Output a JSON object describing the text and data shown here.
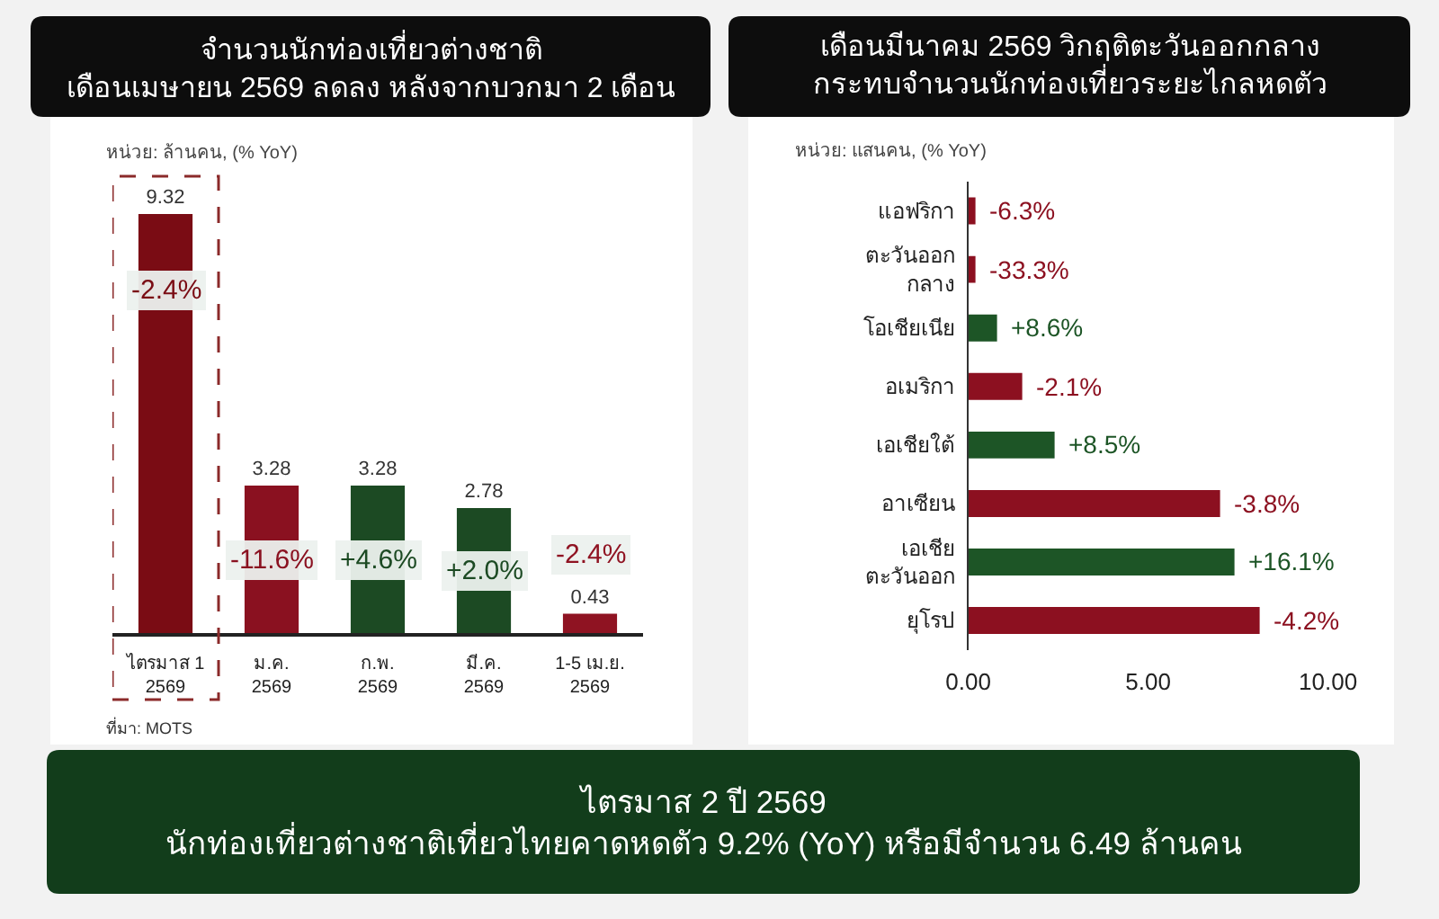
{
  "chart_data": [
    {
      "type": "bar",
      "title": "จำนวนนักท่องเที่ยวต่างชาติ\nเดือนเมษายน 2569 ลดลง หลังจากบวกมา 2 เดือน",
      "subtitle": "หน่วย: ล้านคน, (% YoY)",
      "categories": [
        "ไตรมาส 1\n2569",
        "ม.ค.\n2569",
        "ก.พ.\n2569",
        "มี.ค.\n2569",
        "1-5 เม.ย.\n2569"
      ],
      "values": [
        9.32,
        3.28,
        3.28,
        2.78,
        0.43
      ],
      "colors": [
        "#7a0c14",
        "#8a1120",
        "#1c4a23",
        "#1c4a23",
        "#8f1322"
      ],
      "data_labels": true,
      "tick_labels": "x",
      "annotations": [
        {
          "text": "-2.4%",
          "x": "ไตรมาส 1\n2569",
          "y": 9.32
        },
        {
          "text": "-11.6%",
          "x": "ม.ค.\n2569",
          "y": 3.28
        },
        {
          "text": "+4.6%",
          "x": "ก.พ.\n2569",
          "y": 3.28
        },
        {
          "text": "+2.0%",
          "x": "มี.ค.\n2569",
          "y": 2.78
        },
        {
          "text": "-2.4%",
          "x": "1-5 เม.ย.\n2569",
          "y": 0.43
        },
        "ที่มา: MOTS"
      ]
    },
    {
      "type": "bar",
      "orientation": "horizontal",
      "title": "เดือนมีนาคม 2569 วิกฤติตะวันออกกลาง\nกระทบจำนวนนักท่องเที่ยวระยะไกลหดตัว",
      "subtitle": "หน่วย: แสนคน, (% YoY)",
      "categories": [
        "แอฟริกา",
        "ตะวันออก\nกลาง",
        "โอเชียเนีย",
        "อเมริกา",
        "เอเชียใต้",
        "อาเซียน",
        "เอเชีย\nตะวันออก",
        "ยุโรป"
      ],
      "values": [
        0.2,
        0.2,
        0.8,
        1.5,
        2.4,
        7.0,
        7.4,
        8.1
      ],
      "colors": [
        "#8c1020",
        "#8c1020",
        "#1d5526",
        "#8c1020",
        "#1d5526",
        "#8c1020",
        "#1d5526",
        "#8c1020"
      ],
      "xlim": [
        0,
        10
      ],
      "xticks": [
        {
          "value": 0,
          "label": "0.00"
        },
        {
          "value": 5,
          "label": "5.00"
        },
        {
          "value": 10,
          "label": "10.00"
        }
      ],
      "annotations": [
        {
          "text": "-6.3%",
          "x": 0.2,
          "y": "แอฟริกา"
        },
        {
          "text": "-33.3%",
          "x": 0.2,
          "y": "ตะวันออก\nกลาง"
        },
        {
          "text": "+8.6%",
          "x": 0.8,
          "y": "โอเชียเนีย"
        },
        {
          "text": "-2.1%",
          "x": 1.5,
          "y": "อเมริกา"
        },
        {
          "text": "+8.5%",
          "x": 2.4,
          "y": "เอเชียใต้"
        },
        {
          "text": "-3.8%",
          "x": 7.0,
          "y": "อาเซียน"
        },
        {
          "text": "+16.1%",
          "x": 7.4,
          "y": "เอเชีย\nตะวันออก"
        },
        {
          "text": "-4.2%",
          "x": 8.1,
          "y": "ยุโรป"
        }
      ]
    },
    {
      "type": "other",
      "title": "ไตรมาส 2 ปี 2569\nนักท่องเที่ยวต่างชาติเที่ยวไทยคาดหดตัว 9.2% (YoY) หรือมีจำนวน 6.49 ล้านคน"
    }
  ]
}
